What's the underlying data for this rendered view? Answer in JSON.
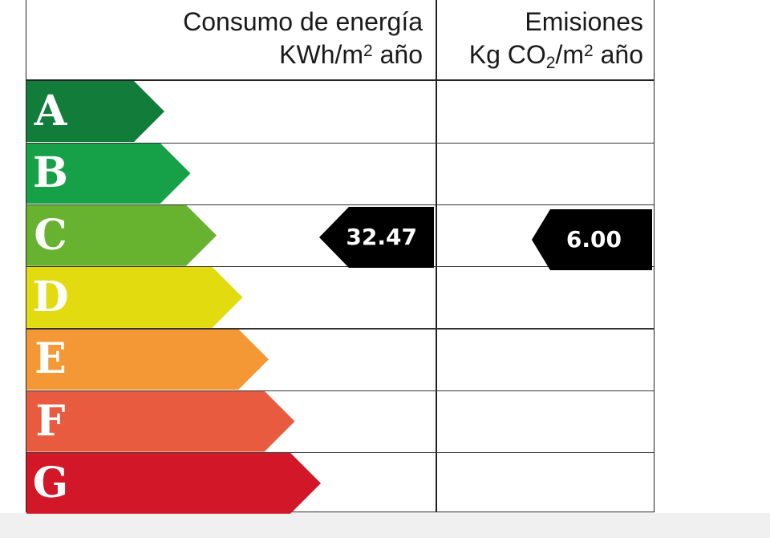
{
  "header": {
    "energy_line1": "Consumo de energía",
    "energy_unit_pre": "KWh/m",
    "energy_unit_sup": "2",
    "energy_unit_post": " año",
    "emissions_line1": "Emisiones",
    "emissions_unit_pre": "Kg CO",
    "emissions_unit_sub": "2",
    "emissions_unit_mid": "/m",
    "emissions_unit_sup": "2",
    "emissions_unit_post": " año"
  },
  "bands": [
    {
      "letter": "A",
      "color": "#127d3b"
    },
    {
      "letter": "B",
      "color": "#16a047"
    },
    {
      "letter": "C",
      "color": "#67b22f"
    },
    {
      "letter": "D",
      "color": "#e2db10"
    },
    {
      "letter": "E",
      "color": "#f39834"
    },
    {
      "letter": "F",
      "color": "#e85b3e"
    },
    {
      "letter": "G",
      "color": "#d11728"
    }
  ],
  "rating": {
    "energy_class": "C",
    "energy_value": "32.47",
    "emissions_class": "C",
    "emissions_value": "6.00",
    "marker_color": "#000000"
  }
}
